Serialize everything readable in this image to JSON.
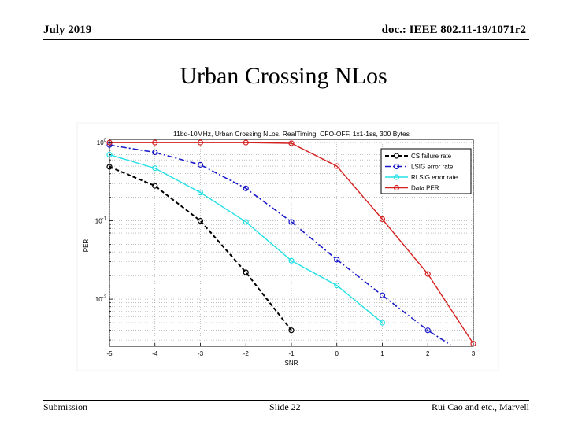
{
  "header": {
    "date": "July 2019",
    "doc": "doc.: IEEE 802.11-19/1071r2"
  },
  "slide_title": "Urban Crossing NLos",
  "footer": {
    "left": "Submission",
    "center": "Slide 22",
    "right": "Rui Cao and etc., Marvell"
  },
  "chart_data": {
    "type": "line",
    "title": "11bd-10MHz, Urban Crossing NLos, RealTiming, CFO-OFF, 1x1-1ss, 300 Bytes",
    "xlabel": "SNR",
    "ylabel": "PER",
    "x_ticks": [
      "-5",
      "-4",
      "-3",
      "-2",
      "-1",
      "0",
      "1",
      "2",
      "3"
    ],
    "y_ticks": [
      {
        "value": 1,
        "base": "10",
        "exp": "0"
      },
      {
        "value": 0.1,
        "base": "10",
        "exp": "-1"
      },
      {
        "value": 0.01,
        "base": "10",
        "exp": "-2"
      }
    ],
    "xlim": [
      -5,
      3
    ],
    "ylim": [
      0.0025,
      1.1
    ],
    "y_scale": "log",
    "grid": true,
    "legend_position": "top-right",
    "series": [
      {
        "name": "CS failure rate",
        "color": "#000000",
        "style": "dashed",
        "x": [
          -5,
          -4,
          -3,
          -2,
          -1
        ],
        "y": [
          0.49,
          0.28,
          0.1,
          0.022,
          0.004
        ]
      },
      {
        "name": "LSIG error rate",
        "color": "#1a1ac8",
        "style": "dashdot",
        "x": [
          -5,
          -4,
          -3,
          -2,
          -1,
          0,
          1,
          2,
          2.5
        ],
        "y": [
          0.93,
          0.75,
          0.52,
          0.26,
          0.097,
          0.032,
          0.0112,
          0.004,
          0.0026
        ]
      },
      {
        "name": "RLSIG error rate",
        "color": "#22e0e6",
        "style": "solid",
        "x": [
          -5,
          -4,
          -3,
          -2,
          -1,
          0,
          1
        ],
        "y": [
          0.7,
          0.47,
          0.23,
          0.097,
          0.031,
          0.015,
          0.005
        ]
      },
      {
        "name": "Data PER",
        "color": "#d42020",
        "style": "solid",
        "x": [
          -5,
          -4,
          -3,
          -2,
          -1,
          0,
          1,
          2,
          3
        ],
        "y": [
          1,
          1,
          1,
          1,
          0.98,
          0.5,
          0.105,
          0.021,
          0.0027
        ]
      }
    ]
  }
}
